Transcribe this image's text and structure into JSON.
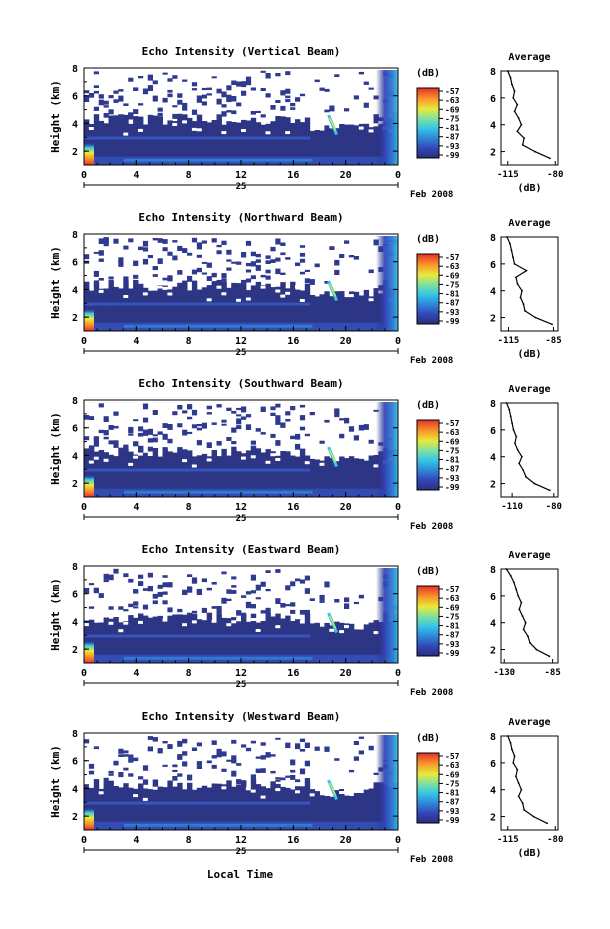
{
  "figure": {
    "xlabel": "Local Time",
    "date_label": "Feb 2008",
    "day_label": "25",
    "colorbar_unit": "(dB)",
    "avg_title": "Average",
    "avg_xlabel": "(dB)",
    "ylabel": "Height (km)"
  },
  "chart_data": [
    {
      "type": "heatmap",
      "title": "Echo Intensity (Vertical Beam)",
      "ylabel": "Height (km)",
      "xticks": [
        "0",
        "4",
        "8",
        "12",
        "16",
        "20",
        "0"
      ],
      "x_day": "25",
      "x_date": "Feb 2008",
      "yticks": [
        "2",
        "4",
        "6",
        "8"
      ],
      "ylim": [
        1,
        8
      ],
      "xlim_hours": [
        0,
        24
      ],
      "colorbar": {
        "unit": "(dB)",
        "ticks": [
          "-57",
          "-63",
          "-69",
          "-75",
          "-81",
          "-87",
          "-93",
          "-99"
        ]
      },
      "average_profile": {
        "title": "Average",
        "xlabel": "(dB)",
        "xticks": [
          "-115",
          "-80"
        ],
        "xlim": [
          -120,
          -78
        ],
        "height": [
          1.5,
          2.0,
          2.5,
          3.0,
          3.5,
          4.0,
          4.5,
          5.0,
          5.5,
          6.0,
          6.5,
          7.0,
          7.5,
          8.0
        ],
        "db": [
          -84,
          -95,
          -104,
          -103,
          -108,
          -105,
          -107,
          -110,
          -108,
          -111,
          -110,
          -112,
          -113,
          -115
        ]
      }
    },
    {
      "type": "heatmap",
      "title": "Echo Intensity (Northward Beam)",
      "ylabel": "Height (km)",
      "xticks": [
        "0",
        "4",
        "8",
        "12",
        "16",
        "20",
        "0"
      ],
      "x_day": "25",
      "x_date": "Feb 2008",
      "yticks": [
        "2",
        "4",
        "6",
        "8"
      ],
      "ylim": [
        1,
        8
      ],
      "xlim_hours": [
        0,
        24
      ],
      "colorbar": {
        "unit": "(dB)",
        "ticks": [
          "-57",
          "-63",
          "-69",
          "-75",
          "-81",
          "-87",
          "-93",
          "-99"
        ]
      },
      "average_profile": {
        "title": "Average",
        "xlabel": "(dB)",
        "xticks": [
          "-115",
          "-85"
        ],
        "xlim": [
          -120,
          -82
        ],
        "height": [
          1.5,
          2.0,
          2.5,
          3.0,
          3.5,
          4.0,
          4.5,
          5.0,
          5.5,
          6.0,
          6.5,
          7.0,
          7.5,
          8.0
        ],
        "db": [
          -86,
          -97,
          -104,
          -105,
          -107,
          -106,
          -109,
          -110,
          -103,
          -111,
          -112,
          -113,
          -114,
          -116
        ]
      }
    },
    {
      "type": "heatmap",
      "title": "Echo Intensity (Southward Beam)",
      "ylabel": "Height (km)",
      "xticks": [
        "0",
        "4",
        "8",
        "12",
        "16",
        "20",
        "0"
      ],
      "x_day": "25",
      "x_date": "Feb 2008",
      "yticks": [
        "2",
        "4",
        "6",
        "8"
      ],
      "ylim": [
        1,
        8
      ],
      "xlim_hours": [
        0,
        24
      ],
      "colorbar": {
        "unit": "(dB)",
        "ticks": [
          "-57",
          "-63",
          "-69",
          "-75",
          "-81",
          "-87",
          "-93",
          "-99"
        ]
      },
      "average_profile": {
        "title": "Average",
        "xlabel": "",
        "xticks": [
          "-110",
          "-80"
        ],
        "xlim": [
          -118,
          -77
        ],
        "height": [
          1.5,
          2.0,
          2.5,
          3.0,
          3.5,
          4.0,
          4.5,
          5.0,
          5.5,
          6.0,
          6.5,
          7.0,
          7.5,
          8.0
        ],
        "db": [
          -83,
          -94,
          -100,
          -102,
          -105,
          -103,
          -106,
          -108,
          -107,
          -109,
          -110,
          -111,
          -112,
          -114
        ]
      }
    },
    {
      "type": "heatmap",
      "title": "Echo Intensity (Eastward Beam)",
      "ylabel": "Height (km)",
      "xticks": [
        "0",
        "4",
        "8",
        "12",
        "16",
        "20",
        "0"
      ],
      "x_day": "25",
      "x_date": "Feb 2008",
      "yticks": [
        "2",
        "4",
        "6",
        "8"
      ],
      "ylim": [
        1,
        8
      ],
      "xlim_hours": [
        0,
        24
      ],
      "colorbar": {
        "unit": "(dB)",
        "ticks": [
          "-57",
          "-63",
          "-69",
          "-75",
          "-81",
          "-87",
          "-93",
          "-99"
        ]
      },
      "average_profile": {
        "title": "Average",
        "xlabel": "",
        "xticks": [
          "-130",
          "-85"
        ],
        "xlim": [
          -133,
          -80
        ],
        "height": [
          1.5,
          2.0,
          2.5,
          3.0,
          3.5,
          4.0,
          4.5,
          5.0,
          5.5,
          6.0,
          6.5,
          7.0,
          7.5,
          8.0
        ],
        "db": [
          -88,
          -100,
          -106,
          -108,
          -112,
          -110,
          -113,
          -116,
          -114,
          -117,
          -119,
          -121,
          -124,
          -128
        ]
      }
    },
    {
      "type": "heatmap",
      "title": "Echo Intensity (Westward Beam)",
      "ylabel": "Height (km)",
      "xticks": [
        "0",
        "4",
        "8",
        "12",
        "16",
        "20",
        "0"
      ],
      "x_day": "25",
      "x_date": "Feb 2008",
      "yticks": [
        "2",
        "4",
        "6",
        "8"
      ],
      "ylim": [
        1,
        8
      ],
      "xlim_hours": [
        0,
        24
      ],
      "colorbar": {
        "unit": "(dB)",
        "ticks": [
          "-57",
          "-63",
          "-69",
          "-75",
          "-81",
          "-87",
          "-93",
          "-99"
        ]
      },
      "average_profile": {
        "title": "Average",
        "xlabel": "(dB)",
        "xticks": [
          "-115",
          "-80"
        ],
        "xlim": [
          -120,
          -78
        ],
        "height": [
          1.5,
          2.0,
          2.5,
          3.0,
          3.5,
          4.0,
          4.5,
          5.0,
          5.5,
          6.0,
          6.5,
          7.0,
          7.5,
          8.0
        ],
        "db": [
          -86,
          -96,
          -103,
          -104,
          -107,
          -105,
          -107,
          -109,
          -108,
          -111,
          -110,
          -112,
          -113,
          -115
        ]
      }
    }
  ]
}
